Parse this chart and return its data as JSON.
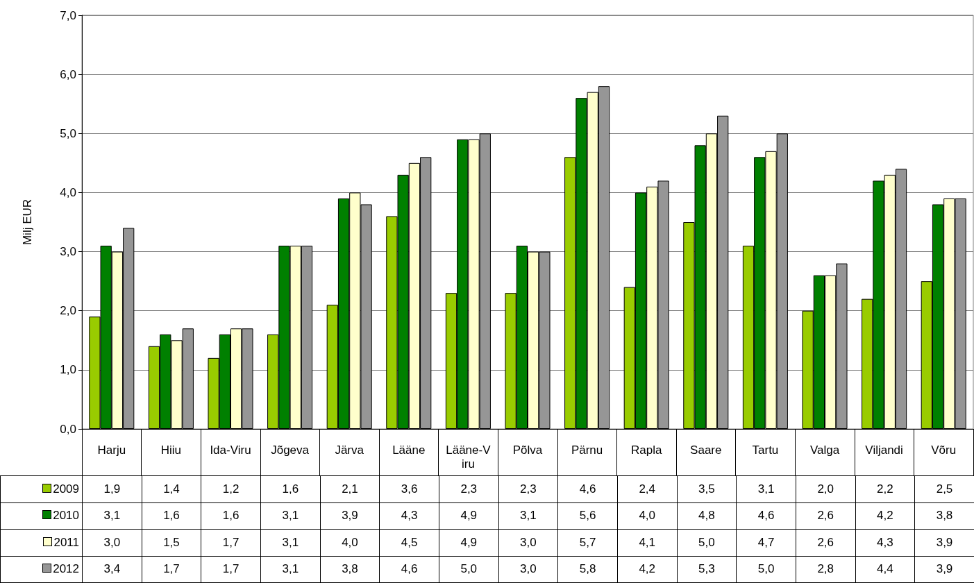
{
  "chart_data": {
    "type": "bar",
    "ylabel": "Milj EUR",
    "categories": [
      "Harju",
      "Hiiu",
      "Ida-Viru",
      "Jõgeva",
      "Järva",
      "Lääne",
      "Lääne-Viru",
      "Põlva",
      "Pärnu",
      "Rapla",
      "Saare",
      "Tartu",
      "Valga",
      "Viljandi",
      "Võru"
    ],
    "series": [
      {
        "name": "2009",
        "color": "#99cc00",
        "values": [
          1.9,
          1.4,
          1.2,
          1.6,
          2.1,
          3.6,
          2.3,
          2.3,
          4.6,
          2.4,
          3.5,
          3.1,
          2.0,
          2.2,
          2.5
        ],
        "value_labels": [
          "1,9",
          "1,4",
          "1,2",
          "1,6",
          "2,1",
          "3,6",
          "2,3",
          "2,3",
          "4,6",
          "2,4",
          "3,5",
          "3,1",
          "2,0",
          "2,2",
          "2,5"
        ]
      },
      {
        "name": "2010",
        "color": "#008000",
        "values": [
          3.1,
          1.6,
          1.6,
          3.1,
          3.9,
          4.3,
          4.9,
          3.1,
          5.6,
          4.0,
          4.8,
          4.6,
          2.6,
          4.2,
          3.8
        ],
        "value_labels": [
          "3,1",
          "1,6",
          "1,6",
          "3,1",
          "3,9",
          "4,3",
          "4,9",
          "3,1",
          "5,6",
          "4,0",
          "4,8",
          "4,6",
          "2,6",
          "4,2",
          "3,8"
        ]
      },
      {
        "name": "2011",
        "color": "#ffffcc",
        "values": [
          3.0,
          1.5,
          1.7,
          3.1,
          4.0,
          4.5,
          4.9,
          3.0,
          5.7,
          4.1,
          5.0,
          4.7,
          2.6,
          4.3,
          3.9
        ],
        "value_labels": [
          "3,0",
          "1,5",
          "1,7",
          "3,1",
          "4,0",
          "4,5",
          "4,9",
          "3,0",
          "5,7",
          "4,1",
          "5,0",
          "4,7",
          "2,6",
          "4,3",
          "3,9"
        ]
      },
      {
        "name": "2012",
        "color": "#969696",
        "values": [
          3.4,
          1.7,
          1.7,
          3.1,
          3.8,
          4.6,
          5.0,
          3.0,
          5.8,
          4.2,
          5.3,
          5.0,
          2.8,
          4.4,
          3.9
        ],
        "value_labels": [
          "3,4",
          "1,7",
          "1,7",
          "3,1",
          "3,8",
          "4,6",
          "5,0",
          "3,0",
          "5,8",
          "4,2",
          "5,3",
          "5,0",
          "2,8",
          "4,4",
          "3,9"
        ]
      }
    ],
    "ylim": [
      0,
      7
    ],
    "yticks": [
      {
        "value": 0,
        "label": "0,0"
      },
      {
        "value": 1,
        "label": "1,0"
      },
      {
        "value": 2,
        "label": "2,0"
      },
      {
        "value": 3,
        "label": "3,0"
      },
      {
        "value": 4,
        "label": "4,0"
      },
      {
        "value": 5,
        "label": "5,0"
      },
      {
        "value": 6,
        "label": "6,0"
      },
      {
        "value": 7,
        "label": "7,0"
      }
    ],
    "grid": "y",
    "legend": "bottom"
  }
}
